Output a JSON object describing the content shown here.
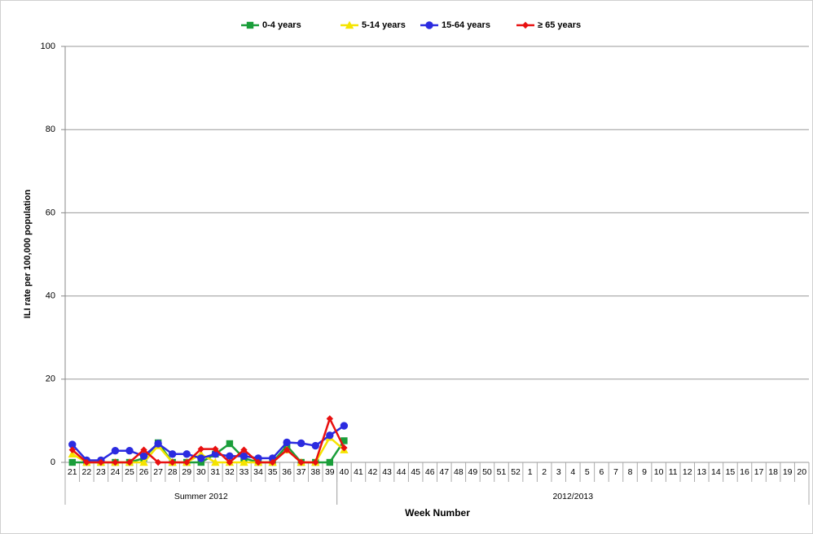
{
  "chart_data": {
    "type": "line",
    "x_label": "Week Number",
    "y_label": "ILI rate per 100,000 population",
    "categories": [
      "21",
      "22",
      "23",
      "24",
      "25",
      "26",
      "27",
      "28",
      "29",
      "30",
      "31",
      "32",
      "33",
      "34",
      "35",
      "36",
      "37",
      "38",
      "39",
      "40",
      "41",
      "42",
      "43",
      "44",
      "45",
      "46",
      "47",
      "48",
      "49",
      "50",
      "51",
      "52",
      "1",
      "2",
      "3",
      "4",
      "5",
      "6",
      "7",
      "8",
      "9",
      "10",
      "11",
      "12",
      "13",
      "14",
      "15",
      "16",
      "17",
      "18",
      "19",
      "20"
    ],
    "groups": [
      {
        "label": "Summer 2012",
        "first": "21",
        "last": "39"
      },
      {
        "label": "2012/2013",
        "first": "40",
        "last": "20"
      }
    ],
    "ylim": [
      0,
      100
    ],
    "yticks": [
      0,
      20,
      40,
      60,
      80,
      100
    ],
    "grid": true,
    "legend": "top",
    "series": [
      {
        "name": "0-4 years",
        "color": "#1a9e3a",
        "marker": "square",
        "values": [
          0,
          0,
          0,
          0,
          0,
          1,
          4.7,
          0,
          0,
          0,
          2,
          4.5,
          1,
          0,
          0,
          4,
          0,
          0,
          0,
          5.2,
          null,
          null,
          null,
          null,
          null,
          null,
          null,
          null,
          null,
          null,
          null,
          null,
          null,
          null,
          null,
          null,
          null,
          null,
          null,
          null,
          null,
          null,
          null,
          null,
          null,
          null,
          null,
          null,
          null,
          null,
          null,
          null
        ]
      },
      {
        "name": "5-14 years",
        "color": "#f5e400",
        "marker": "triangle",
        "values": [
          2,
          0,
          0,
          0,
          0,
          0,
          4,
          0,
          0,
          2,
          0,
          0,
          0,
          0,
          0,
          3,
          0,
          0,
          6,
          3,
          null,
          null,
          null,
          null,
          null,
          null,
          null,
          null,
          null,
          null,
          null,
          null,
          null,
          null,
          null,
          null,
          null,
          null,
          null,
          null,
          null,
          null,
          null,
          null,
          null,
          null,
          null,
          null,
          null,
          null,
          null,
          null
        ]
      },
      {
        "name": "15-64 years",
        "color": "#2b2be0",
        "marker": "circle",
        "values": [
          4.3,
          0.5,
          0.5,
          2.8,
          2.8,
          1.5,
          4.5,
          2,
          2,
          1,
          2,
          1.5,
          1.5,
          1,
          1,
          4.8,
          4.6,
          4,
          6.5,
          8.8,
          null,
          null,
          null,
          null,
          null,
          null,
          null,
          null,
          null,
          null,
          null,
          null,
          null,
          null,
          null,
          null,
          null,
          null,
          null,
          null,
          null,
          null,
          null,
          null,
          null,
          null,
          null,
          null,
          null,
          null,
          null,
          null
        ]
      },
      {
        "name": "≥ 65 years",
        "color": "#e81010",
        "marker": "diamond",
        "values": [
          3,
          0,
          0,
          0,
          0,
          3,
          0,
          0,
          0,
          3.2,
          3.2,
          0,
          3,
          0,
          0,
          3,
          0,
          0,
          10.5,
          3.5,
          null,
          null,
          null,
          null,
          null,
          null,
          null,
          null,
          null,
          null,
          null,
          null,
          null,
          null,
          null,
          null,
          null,
          null,
          null,
          null,
          null,
          null,
          null,
          null,
          null,
          null,
          null,
          null,
          null,
          null,
          null,
          null
        ]
      }
    ]
  }
}
